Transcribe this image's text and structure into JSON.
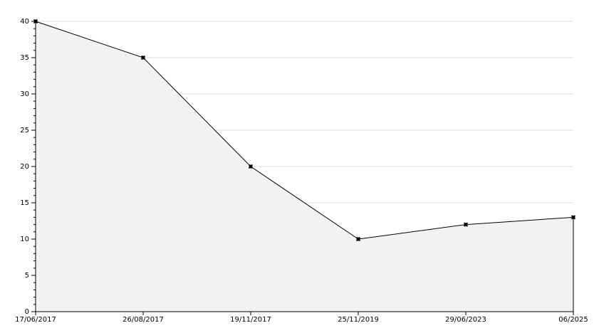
{
  "chart_data": {
    "type": "area",
    "categories": [
      "17/06/2017",
      "26/08/2017",
      "19/11/2017",
      "25/11/2019",
      "29/06/2023",
      "06/2025"
    ],
    "values": [
      40,
      35,
      20,
      10,
      12,
      13
    ],
    "color": "#000000",
    "fill": "#f2f2f2",
    "ylim": [
      0,
      40
    ],
    "yticks": [
      0,
      5,
      10,
      15,
      20,
      25,
      30,
      35,
      40
    ],
    "grid": true
  }
}
